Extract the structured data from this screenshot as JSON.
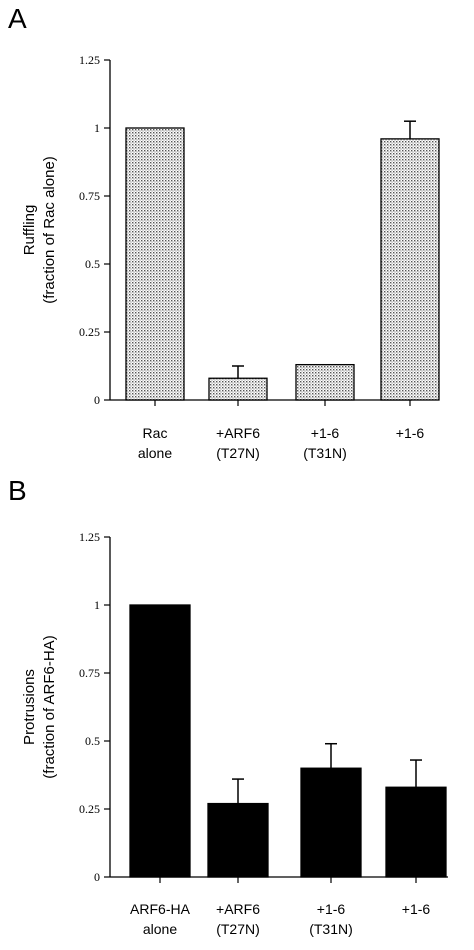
{
  "chart_data": [
    {
      "type": "bar",
      "panel": "A",
      "categories": [
        [
          "Rac",
          "alone"
        ],
        [
          "+ARF6",
          "(T27N)"
        ],
        [
          "+1-6",
          "(T31N)"
        ],
        [
          "+1-6"
        ]
      ],
      "values": [
        1.0,
        0.08,
        0.13,
        0.96
      ],
      "error": [
        null,
        0.045,
        null,
        0.065
      ],
      "ylabel_lines": [
        "Ruffling",
        "(fraction of Rac alone)"
      ],
      "ylim": [
        0,
        1.25
      ],
      "yticks": [
        "0",
        "0.25",
        "0.5",
        "0.75",
        "1",
        "1.25"
      ],
      "bar_fill": "dotted-gray"
    },
    {
      "type": "bar",
      "panel": "B",
      "categories": [
        [
          "ARF6-HA",
          "alone"
        ],
        [
          "+ARF6",
          "(T27N)"
        ],
        [
          "+1-6",
          "(T31N)"
        ],
        [
          "+1-6"
        ]
      ],
      "values": [
        1.0,
        0.27,
        0.4,
        0.33
      ],
      "error": [
        null,
        0.09,
        0.09,
        0.1
      ],
      "ylabel_lines": [
        "Protrusions",
        "(fraction of ARF6-HA)"
      ],
      "ylim": [
        0,
        1.25
      ],
      "yticks": [
        "0",
        "0.25",
        "0.5",
        "0.75",
        "1",
        "1.25"
      ],
      "bar_fill": "#000000"
    }
  ]
}
